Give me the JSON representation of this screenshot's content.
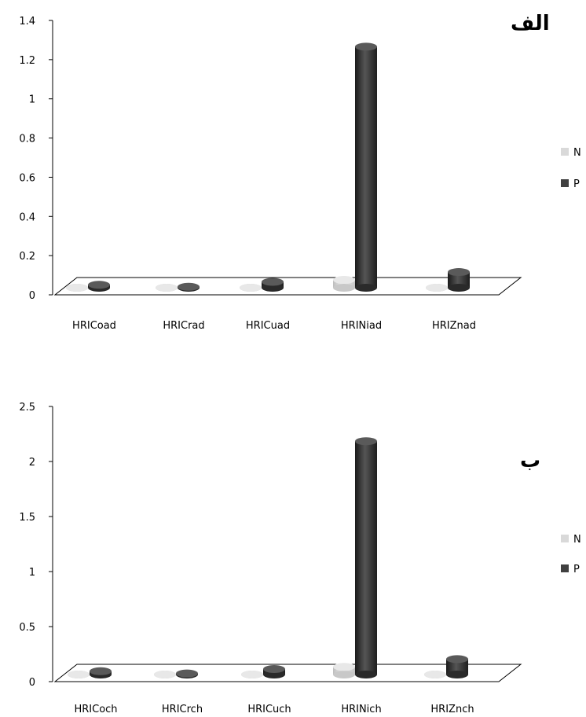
{
  "chart_data": [
    {
      "type": "bar",
      "title": "الف",
      "categories": [
        "HRICoad",
        "HRICrad",
        "HRICuad",
        "HRINiad",
        "HRIZnad"
      ],
      "series": [
        {
          "name": "N",
          "values": [
            0,
            0,
            0,
            0.04,
            0
          ]
        },
        {
          "name": "P",
          "values": [
            0.015,
            0.005,
            0.03,
            1.23,
            0.08
          ]
        }
      ],
      "yticks": [
        "0",
        "0.2",
        "0.4",
        "0.6",
        "0.8",
        "1",
        "1.2",
        "1.4"
      ],
      "ylim": [
        0,
        1.4
      ],
      "legend": "right",
      "colors": {
        "N": "#d9d9d9",
        "P": "#404040"
      }
    },
    {
      "type": "bar",
      "title": "ب",
      "categories": [
        "HRICoch",
        "HRICrch",
        "HRICuch",
        "HRINich",
        "HRIZnch"
      ],
      "series": [
        {
          "name": "N",
          "values": [
            0,
            0,
            0,
            0.07,
            0
          ]
        },
        {
          "name": "P",
          "values": [
            0.03,
            0.01,
            0.05,
            2.12,
            0.14
          ]
        }
      ],
      "yticks": [
        "0",
        "0.5",
        "1",
        "1.5",
        "2",
        "2.5"
      ],
      "ylim": [
        0,
        2.5
      ],
      "legend": "right",
      "colors": {
        "N": "#d9d9d9",
        "P": "#404040"
      }
    }
  ]
}
